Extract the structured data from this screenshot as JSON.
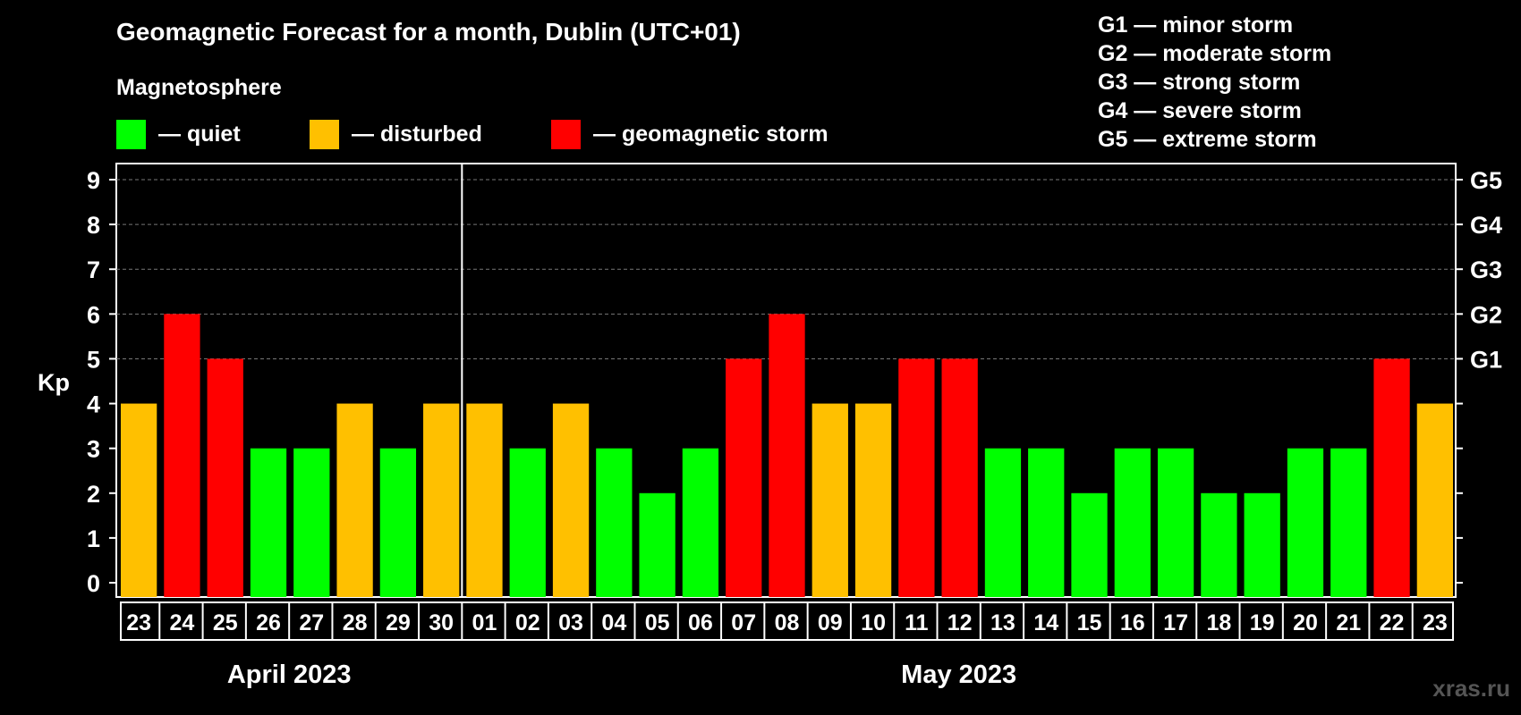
{
  "chart_data": {
    "type": "bar",
    "title": "Geomagnetic Forecast for a month, Dublin (UTC+01)",
    "ylabel": "Kp",
    "ylim": [
      0,
      9
    ],
    "yticks": [
      "0",
      "1",
      "2",
      "3",
      "4",
      "5",
      "6",
      "7",
      "8",
      "9"
    ],
    "right_axis_labels": [
      {
        "value": 5,
        "label": "G1"
      },
      {
        "value": 6,
        "label": "G2"
      },
      {
        "value": 7,
        "label": "G3"
      },
      {
        "value": 8,
        "label": "G4"
      },
      {
        "value": 9,
        "label": "G5"
      }
    ],
    "grid": "dashed horizontal at 5-9",
    "categories": [
      "23",
      "24",
      "25",
      "26",
      "27",
      "28",
      "29",
      "30",
      "01",
      "02",
      "03",
      "04",
      "05",
      "06",
      "07",
      "08",
      "09",
      "10",
      "11",
      "12",
      "13",
      "14",
      "15",
      "16",
      "17",
      "18",
      "19",
      "20",
      "21",
      "22",
      "23"
    ],
    "values": [
      4,
      6,
      5,
      3,
      3,
      4,
      3,
      4,
      4,
      3,
      4,
      3,
      2,
      3,
      5,
      6,
      4,
      4,
      5,
      5,
      3,
      3,
      2,
      3,
      3,
      2,
      2,
      3,
      3,
      5,
      4
    ],
    "months": [
      {
        "label": "April 2023",
        "start_index": 0,
        "end_index": 7
      },
      {
        "label": "May 2023",
        "start_index": 8,
        "end_index": 30
      }
    ],
    "color_scale": {
      "quiet_max": 3,
      "disturbed": 4,
      "storm_min": 5
    }
  },
  "legend": {
    "heading": "Magnetosphere",
    "items": [
      {
        "label": "— quiet",
        "color": "#00ff00"
      },
      {
        "label": "— disturbed",
        "color": "#ffc000"
      },
      {
        "label": "— geomagnetic storm",
        "color": "#ff0000"
      }
    ]
  },
  "g_legend": [
    "G1 — minor storm",
    "G2 — moderate storm",
    "G3 — strong storm",
    "G4 — severe storm",
    "G5 — extreme storm"
  ],
  "watermark": "xras.ru"
}
